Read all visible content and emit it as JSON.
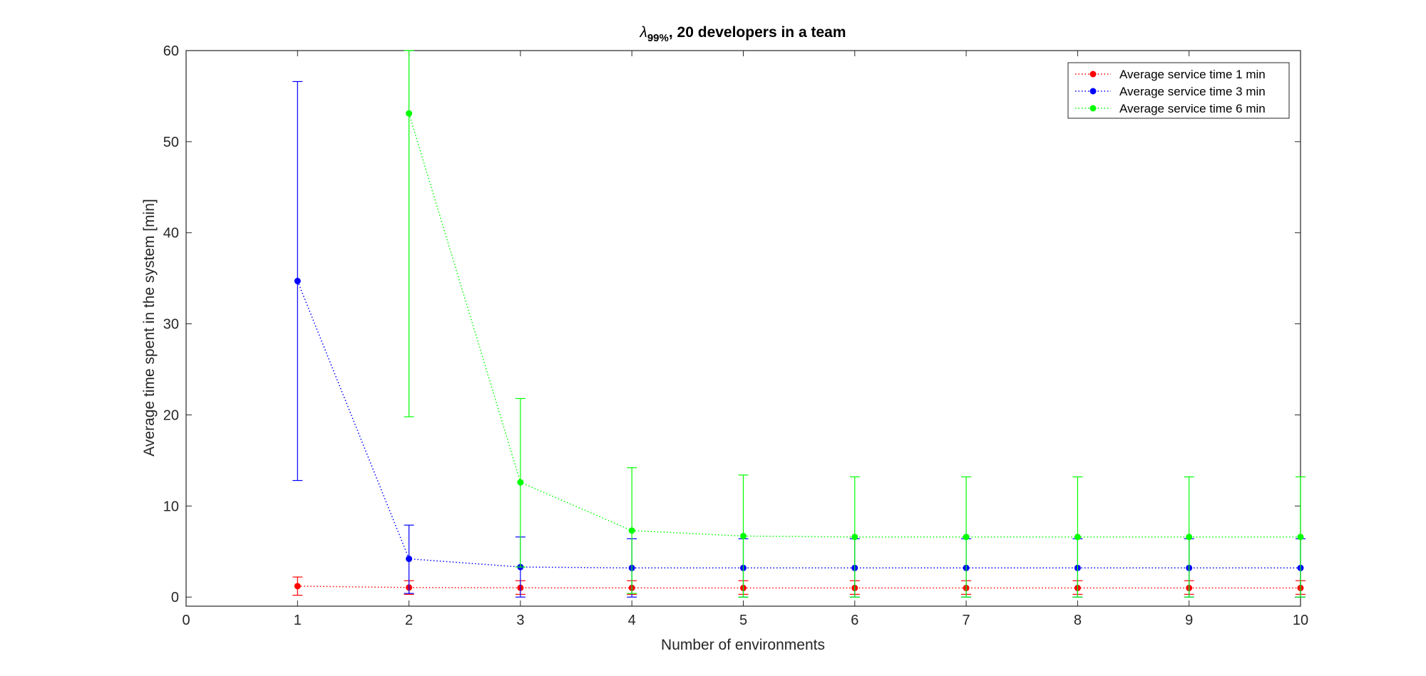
{
  "chart_data": {
    "type": "line",
    "title_symbol": "λ",
    "title_subscript": "99%",
    "title_rest": ", 20 developers in a team",
    "xlabel": "Number of environments",
    "ylabel": "Average time spent in the system [min]",
    "xlim": [
      0,
      10
    ],
    "ylim": [
      -1,
      60
    ],
    "xticks": [
      0,
      1,
      2,
      3,
      4,
      5,
      6,
      7,
      8,
      9,
      10
    ],
    "yticks": [
      0,
      10,
      20,
      30,
      40,
      50,
      60
    ],
    "grid": false,
    "legend_position": "top-right",
    "series": [
      {
        "name": "Average service time 1 min",
        "color": "#ff0000",
        "x": [
          1,
          2,
          3,
          4,
          5,
          6,
          7,
          8,
          9,
          10
        ],
        "y": [
          1.2,
          1.05,
          1.02,
          1.01,
          1.0,
          1.0,
          1.0,
          1.0,
          1.0,
          1.0
        ],
        "err_low": [
          0.2,
          0.3,
          0.3,
          0.3,
          0.3,
          0.3,
          0.3,
          0.3,
          0.3,
          0.3
        ],
        "err_high": [
          2.2,
          1.8,
          1.8,
          1.8,
          1.8,
          1.8,
          1.8,
          1.8,
          1.8,
          1.8
        ]
      },
      {
        "name": "Average service time 3 min",
        "color": "#0000ff",
        "x": [
          1,
          2,
          3,
          4,
          5,
          6,
          7,
          8,
          9,
          10
        ],
        "y": [
          34.7,
          4.2,
          3.3,
          3.2,
          3.2,
          3.2,
          3.2,
          3.2,
          3.2,
          3.2
        ],
        "err_low": [
          12.8,
          0.4,
          0.0,
          0.0,
          0.0,
          0.0,
          0.0,
          0.0,
          0.0,
          0.0
        ],
        "err_high": [
          56.6,
          7.9,
          6.6,
          6.4,
          6.4,
          6.4,
          6.4,
          6.4,
          6.4,
          6.4
        ]
      },
      {
        "name": "Average service time 6 min",
        "color": "#00ff00",
        "x": [
          2,
          3,
          4,
          5,
          6,
          7,
          8,
          9,
          10
        ],
        "y": [
          53.1,
          12.6,
          7.3,
          6.7,
          6.6,
          6.6,
          6.6,
          6.6,
          6.6
        ],
        "err_low": [
          19.8,
          3.3,
          0.4,
          0.0,
          0.0,
          0.0,
          0.0,
          0.0,
          0.0
        ],
        "err_high": [
          60.0,
          21.8,
          14.2,
          13.4,
          13.2,
          13.2,
          13.2,
          13.2,
          13.2
        ]
      }
    ]
  }
}
